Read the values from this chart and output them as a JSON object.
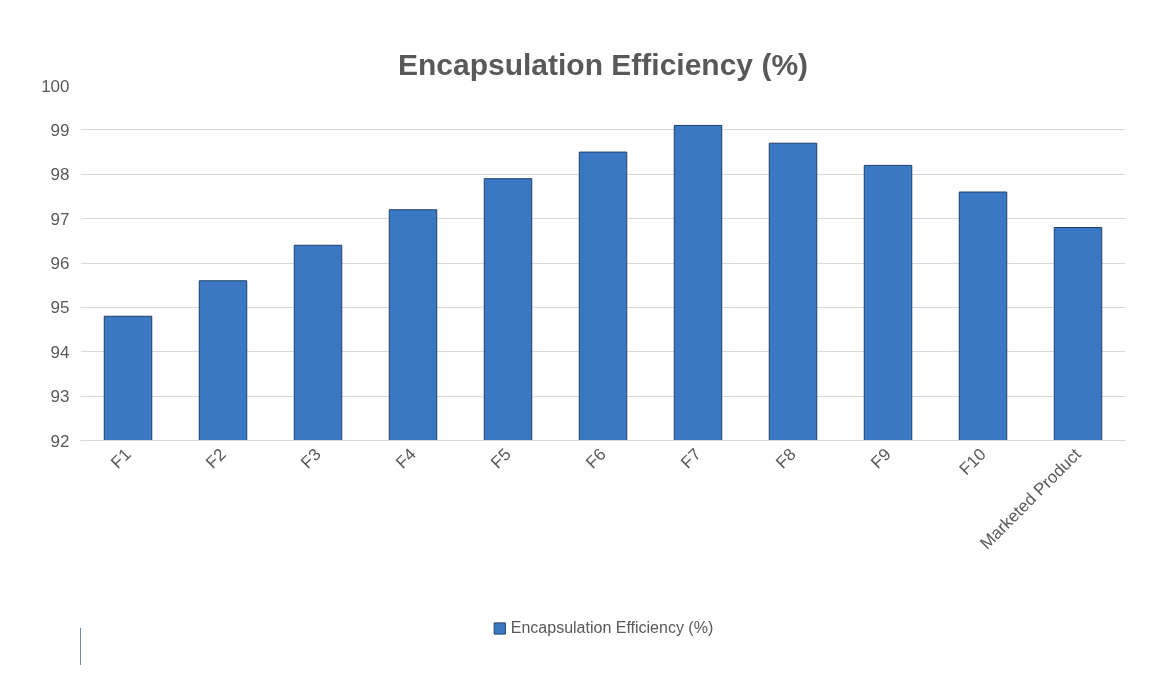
{
  "chart_data": {
    "type": "bar",
    "title": "Encapsulation Efficiency (%)",
    "categories": [
      "F1",
      "F2",
      "F3",
      "F4",
      "F5",
      "F6",
      "F7",
      "F8",
      "F9",
      "F10",
      "Marketed Product"
    ],
    "series": [
      {
        "name": "Encapsulation Efficiency (%)",
        "color": "#3a78c3",
        "values": [
          94.8,
          95.6,
          96.4,
          97.2,
          97.9,
          98.5,
          99.1,
          98.7,
          98.2,
          97.6,
          96.8
        ]
      }
    ],
    "ylim": [
      92,
      100
    ],
    "yticks": [
      92,
      93,
      94,
      95,
      96,
      97,
      98,
      99,
      100
    ],
    "grid": "y",
    "legend": "bottom"
  }
}
